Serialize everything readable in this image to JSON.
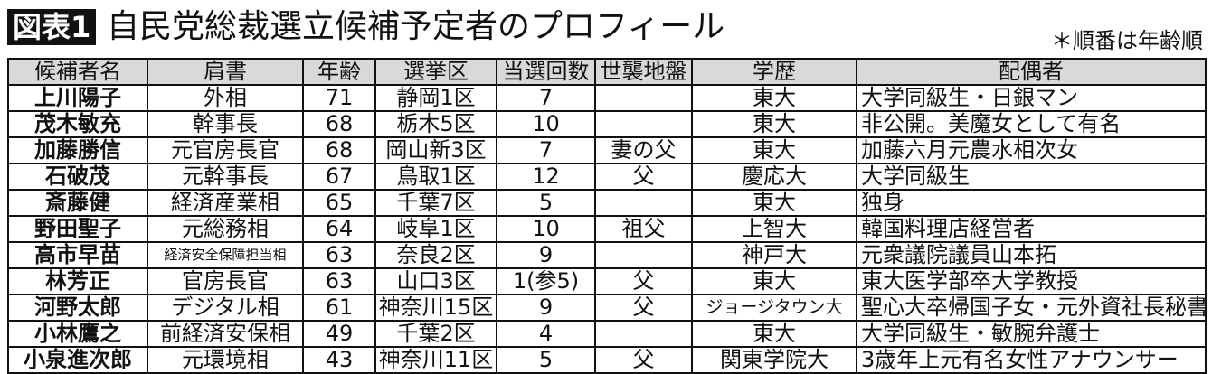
{
  "header": {
    "badge": "図表1",
    "title": "自民党総裁選立候補予定者のプロフィール",
    "note": "＊順番は年齢順"
  },
  "table": {
    "columns": [
      "候補者名",
      "肩書",
      "年齢",
      "選挙区",
      "当選回数",
      "世襲地盤",
      "学歴",
      "配偶者"
    ],
    "rows": [
      {
        "name": "上川陽子",
        "title": "外相",
        "age": "71",
        "district": "静岡1区",
        "wins": "7",
        "inherited": "",
        "education": "東大",
        "spouse": "大学同級生・日銀マン"
      },
      {
        "name": "茂木敏充",
        "title": "幹事長",
        "age": "68",
        "district": "栃木5区",
        "wins": "10",
        "inherited": "",
        "education": "東大",
        "spouse": "非公開。美魔女として有名"
      },
      {
        "name": "加藤勝信",
        "title": "元官房長官",
        "age": "68",
        "district": "岡山新3区",
        "wins": "7",
        "inherited": "妻の父",
        "education": "東大",
        "spouse": "加藤六月元農水相次女"
      },
      {
        "name": "石破茂",
        "title": "元幹事長",
        "age": "67",
        "district": "鳥取1区",
        "wins": "12",
        "inherited": "父",
        "education": "慶応大",
        "spouse": "大学同級生"
      },
      {
        "name": "斎藤健",
        "title": "経済産業相",
        "age": "65",
        "district": "千葉7区",
        "wins": "5",
        "inherited": "",
        "education": "東大",
        "spouse": "独身"
      },
      {
        "name": "野田聖子",
        "title": "元総務相",
        "age": "64",
        "district": "岐阜1区",
        "wins": "10",
        "inherited": "祖父",
        "education": "上智大",
        "spouse": "韓国料理店経営者"
      },
      {
        "name": "高市早苗",
        "title": "経済安全保障担当相",
        "age": "63",
        "district": "奈良2区",
        "wins": "9",
        "inherited": "",
        "education": "神戸大",
        "spouse": "元衆議院議員山本拓"
      },
      {
        "name": "林芳正",
        "title": "官房長官",
        "age": "63",
        "district": "山口3区",
        "wins": "1(参5)",
        "inherited": "父",
        "education": "東大",
        "spouse": "東大医学部卒大学教授"
      },
      {
        "name": "河野太郎",
        "title": "デジタル相",
        "age": "61",
        "district": "神奈川15区",
        "wins": "9",
        "inherited": "父",
        "education": "ジョージタウン大",
        "spouse": "聖心大卒帰国子女・元外資社長秘書"
      },
      {
        "name": "小林鷹之",
        "title": "前経済安保相",
        "age": "49",
        "district": "千葉2区",
        "wins": "4",
        "inherited": "",
        "education": "東大",
        "spouse": "大学同級生・敏腕弁護士"
      },
      {
        "name": "小泉進次郎",
        "title": "元環境相",
        "age": "43",
        "district": "神奈川11区",
        "wins": "5",
        "inherited": "父",
        "education": "関東学院大",
        "spouse": "3歳年上元有名女性アナウンサー"
      }
    ]
  }
}
